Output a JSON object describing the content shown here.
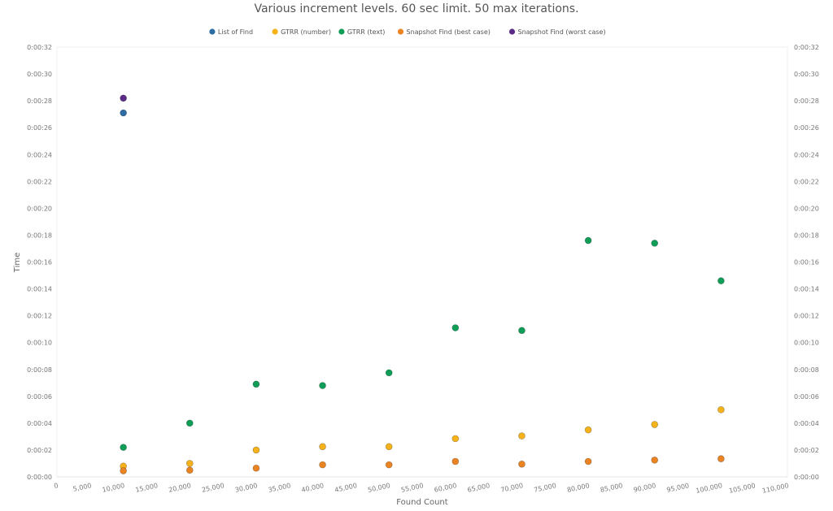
{
  "chart_data": {
    "type": "scatter",
    "title": "Various increment levels. 60 sec limit. 50 max iterations.",
    "xlabel": "Found Count",
    "ylabel": "Time",
    "xlim": [
      0,
      110000
    ],
    "ylim": [
      0,
      32
    ],
    "x_ticks": [
      "0",
      "5,000",
      "10,000",
      "15,000",
      "20,000",
      "25,000",
      "30,000",
      "35,000",
      "40,000",
      "45,000",
      "50,000",
      "55,000",
      "60,000",
      "65,000",
      "70,000",
      "75,000",
      "80,000",
      "85,000",
      "90,000",
      "95,000",
      "100,000",
      "105,000",
      "110,000"
    ],
    "y_ticks": [
      "0:00:00",
      "0:00:02",
      "0:00:04",
      "0:00:06",
      "0:00:08",
      "0:00:10",
      "0:00:12",
      "0:00:14",
      "0:00:16",
      "0:00:18",
      "0:00:20",
      "0:00:22",
      "0:00:24",
      "0:00:26",
      "0:00:28",
      "0:00:30",
      "0:00:32"
    ],
    "legend_position": "top-center",
    "grid": false,
    "series": [
      {
        "name": "List of Find",
        "color": "#2e6da4",
        "points": [
          {
            "x": 10000,
            "y": 27.1
          }
        ]
      },
      {
        "name": "GTRR (number)",
        "color": "#f5b21b",
        "points": [
          {
            "x": 10000,
            "y": 0.8
          },
          {
            "x": 20000,
            "y": 1.0
          },
          {
            "x": 30000,
            "y": 2.0
          },
          {
            "x": 40000,
            "y": 2.25
          },
          {
            "x": 50000,
            "y": 2.25
          },
          {
            "x": 60000,
            "y": 2.85
          },
          {
            "x": 70000,
            "y": 3.05
          },
          {
            "x": 80000,
            "y": 3.5
          },
          {
            "x": 90000,
            "y": 3.9
          },
          {
            "x": 100000,
            "y": 5.0
          }
        ]
      },
      {
        "name": "GTRR (text)",
        "color": "#0f9d58",
        "points": [
          {
            "x": 10000,
            "y": 2.2
          },
          {
            "x": 20000,
            "y": 4.0
          },
          {
            "x": 30000,
            "y": 6.9
          },
          {
            "x": 40000,
            "y": 6.8
          },
          {
            "x": 50000,
            "y": 7.75
          },
          {
            "x": 60000,
            "y": 11.1
          },
          {
            "x": 70000,
            "y": 10.9
          },
          {
            "x": 80000,
            "y": 17.6
          },
          {
            "x": 90000,
            "y": 17.4
          },
          {
            "x": 100000,
            "y": 14.6
          }
        ]
      },
      {
        "name": "Snapshot Find (best case)",
        "color": "#ea8423",
        "points": [
          {
            "x": 10000,
            "y": 0.45
          },
          {
            "x": 20000,
            "y": 0.5
          },
          {
            "x": 30000,
            "y": 0.65
          },
          {
            "x": 40000,
            "y": 0.9
          },
          {
            "x": 50000,
            "y": 0.9
          },
          {
            "x": 60000,
            "y": 1.15
          },
          {
            "x": 70000,
            "y": 0.95
          },
          {
            "x": 80000,
            "y": 1.15
          },
          {
            "x": 90000,
            "y": 1.25
          },
          {
            "x": 100000,
            "y": 1.35
          }
        ]
      },
      {
        "name": "Snapshot Find (worst case)",
        "color": "#5b2a86",
        "points": [
          {
            "x": 10000,
            "y": 28.2
          }
        ]
      }
    ]
  }
}
